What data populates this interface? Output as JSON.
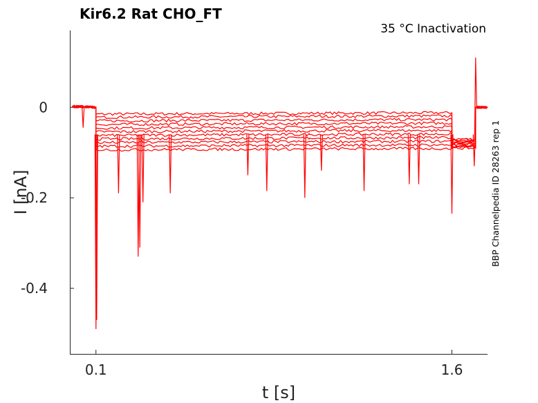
{
  "chart_data": {
    "type": "line",
    "title": "Kir6.2  Rat  CHO_FT",
    "annotation": "35 °C  Inactivation",
    "side_label": "BBP Channelpedia ID 28263 rep 1",
    "xlabel": "t [s]",
    "ylabel": "I [nA]",
    "xlim": [
      -0.01,
      1.75
    ],
    "ylim": [
      -0.545,
      0.17
    ],
    "x_ticks": [
      {
        "value": 0.1,
        "label": "0.1"
      },
      {
        "value": 1.6,
        "label": "1.6"
      }
    ],
    "y_ticks": [
      {
        "value": 0,
        "label": "0"
      },
      {
        "value": -0.2,
        "label": "-0.2"
      },
      {
        "value": -0.4,
        "label": "-0.4"
      }
    ],
    "grid": false,
    "legend": "none",
    "series_color": "#ff0000",
    "series": [
      {
        "values": [
          [
            0.0,
            0.002
          ],
          [
            0.05,
            0.001
          ],
          [
            0.1,
            0.0
          ],
          [
            0.1,
            -0.015
          ],
          [
            0.5,
            -0.014
          ],
          [
            1.0,
            -0.013
          ],
          [
            1.6,
            -0.012
          ],
          [
            1.6,
            -0.07
          ],
          [
            1.7,
            -0.07
          ],
          [
            1.7,
            0.0
          ],
          [
            1.75,
            0.0
          ]
        ]
      },
      {
        "values": [
          [
            0.0,
            0.002
          ],
          [
            0.05,
            0.001
          ],
          [
            0.1,
            0.0
          ],
          [
            0.1,
            -0.022
          ],
          [
            0.5,
            -0.021
          ],
          [
            1.0,
            -0.02
          ],
          [
            1.6,
            -0.019
          ],
          [
            1.6,
            -0.072
          ],
          [
            1.7,
            -0.072
          ],
          [
            1.7,
            0.0
          ],
          [
            1.75,
            0.0
          ]
        ]
      },
      {
        "values": [
          [
            0.0,
            0.002
          ],
          [
            0.05,
            0.001
          ],
          [
            0.1,
            0.0
          ],
          [
            0.1,
            -0.03
          ],
          [
            0.5,
            -0.029
          ],
          [
            1.0,
            -0.028
          ],
          [
            1.6,
            -0.027
          ],
          [
            1.6,
            -0.074
          ],
          [
            1.7,
            -0.074
          ],
          [
            1.7,
            0.0
          ],
          [
            1.75,
            0.0
          ]
        ]
      },
      {
        "values": [
          [
            0.0,
            0.002
          ],
          [
            0.05,
            0.001
          ],
          [
            0.1,
            0.0
          ],
          [
            0.1,
            -0.038
          ],
          [
            0.5,
            -0.037
          ],
          [
            1.0,
            -0.036
          ],
          [
            1.6,
            -0.035
          ],
          [
            1.6,
            -0.076
          ],
          [
            1.7,
            -0.076
          ],
          [
            1.7,
            0.0
          ],
          [
            1.75,
            0.0
          ]
        ]
      },
      {
        "values": [
          [
            0.0,
            0.002
          ],
          [
            0.05,
            0.001
          ],
          [
            0.1,
            0.0
          ],
          [
            0.1,
            -0.046
          ],
          [
            0.5,
            -0.045
          ],
          [
            1.0,
            -0.044
          ],
          [
            1.6,
            -0.043
          ],
          [
            1.6,
            -0.078
          ],
          [
            1.7,
            -0.078
          ],
          [
            1.7,
            0.0
          ],
          [
            1.75,
            0.0
          ]
        ]
      },
      {
        "values": [
          [
            0.0,
            0.002
          ],
          [
            0.05,
            0.001
          ],
          [
            0.1,
            0.0
          ],
          [
            0.1,
            -0.054
          ],
          [
            0.5,
            -0.053
          ],
          [
            1.0,
            -0.052
          ],
          [
            1.6,
            -0.051
          ],
          [
            1.6,
            -0.08
          ],
          [
            1.7,
            -0.08
          ],
          [
            1.7,
            0.0
          ],
          [
            1.75,
            0.0
          ]
        ]
      },
      {
        "values": [
          [
            0.0,
            0.002
          ],
          [
            0.05,
            0.001
          ],
          [
            0.1,
            0.0
          ],
          [
            0.1,
            -0.062
          ],
          [
            0.5,
            -0.061
          ],
          [
            1.0,
            -0.06
          ],
          [
            1.6,
            -0.059
          ],
          [
            1.6,
            -0.082
          ],
          [
            1.7,
            -0.082
          ],
          [
            1.7,
            0.0
          ],
          [
            1.75,
            0.0
          ]
        ]
      },
      {
        "values": [
          [
            0.0,
            0.002
          ],
          [
            0.05,
            0.001
          ],
          [
            0.1,
            0.0
          ],
          [
            0.1,
            -0.07
          ],
          [
            0.5,
            -0.069
          ],
          [
            1.0,
            -0.068
          ],
          [
            1.6,
            -0.067
          ],
          [
            1.6,
            -0.084
          ],
          [
            1.7,
            -0.084
          ],
          [
            1.7,
            0.0
          ],
          [
            1.75,
            0.0
          ]
        ]
      },
      {
        "values": [
          [
            0.0,
            0.002
          ],
          [
            0.05,
            0.001
          ],
          [
            0.1,
            0.0
          ],
          [
            0.1,
            -0.078
          ],
          [
            0.5,
            -0.077
          ],
          [
            1.0,
            -0.076
          ],
          [
            1.6,
            -0.075
          ],
          [
            1.6,
            -0.086
          ],
          [
            1.7,
            -0.086
          ],
          [
            1.7,
            0.0
          ],
          [
            1.75,
            0.0
          ]
        ]
      },
      {
        "values": [
          [
            0.0,
            0.002
          ],
          [
            0.05,
            0.001
          ],
          [
            0.1,
            0.0
          ],
          [
            0.1,
            -0.086
          ],
          [
            0.5,
            -0.085
          ],
          [
            1.0,
            -0.084
          ],
          [
            1.6,
            -0.083
          ],
          [
            1.6,
            -0.088
          ],
          [
            1.7,
            -0.088
          ],
          [
            1.7,
            0.0
          ],
          [
            1.75,
            0.0
          ]
        ]
      },
      {
        "values": [
          [
            0.0,
            0.002
          ],
          [
            0.05,
            0.001
          ],
          [
            0.1,
            0.0
          ],
          [
            0.1,
            -0.094
          ],
          [
            0.5,
            -0.093
          ],
          [
            1.0,
            -0.092
          ],
          [
            1.6,
            -0.091
          ],
          [
            1.6,
            -0.09
          ],
          [
            1.7,
            -0.09
          ],
          [
            1.7,
            0.0
          ],
          [
            1.75,
            0.0
          ]
        ]
      }
    ],
    "spikes": [
      {
        "x": 0.046,
        "y": -0.045
      },
      {
        "x": 0.1,
        "y": -0.49
      },
      {
        "x": 0.103,
        "y": -0.47
      },
      {
        "x": 0.195,
        "y": -0.19
      },
      {
        "x": 0.278,
        "y": -0.33
      },
      {
        "x": 0.285,
        "y": -0.31
      },
      {
        "x": 0.298,
        "y": -0.21
      },
      {
        "x": 0.413,
        "y": -0.19
      },
      {
        "x": 0.74,
        "y": -0.15
      },
      {
        "x": 0.82,
        "y": -0.185
      },
      {
        "x": 0.98,
        "y": -0.2
      },
      {
        "x": 1.05,
        "y": -0.14
      },
      {
        "x": 1.23,
        "y": -0.185
      },
      {
        "x": 1.42,
        "y": -0.17
      },
      {
        "x": 1.46,
        "y": -0.17
      },
      {
        "x": 1.6,
        "y": -0.235
      },
      {
        "x": 1.694,
        "y": -0.13
      }
    ],
    "peak": {
      "x": 1.7,
      "y": 0.11
    }
  }
}
